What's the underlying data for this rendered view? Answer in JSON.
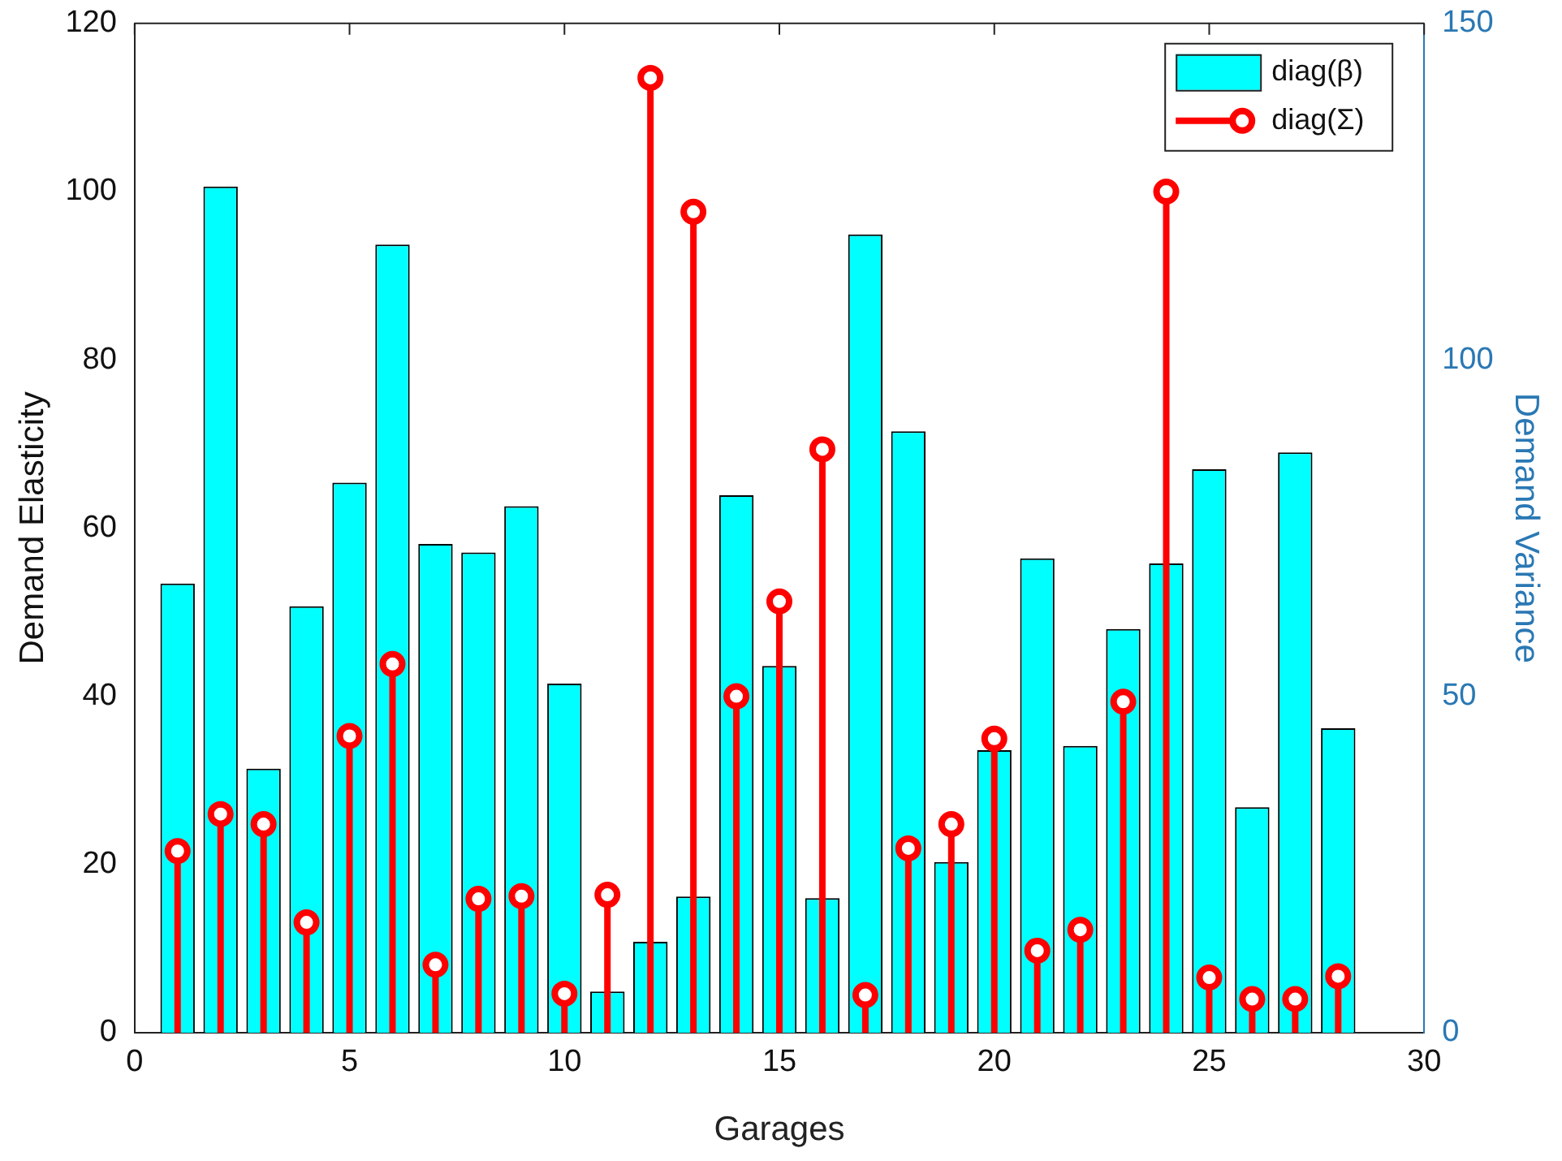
{
  "chart_data": {
    "type": "bar",
    "xlabel": "Garages",
    "ylabel": "Demand Elasticity",
    "y2label": "Demand Variance",
    "x": [
      1,
      2,
      3,
      4,
      5,
      6,
      7,
      8,
      9,
      10,
      11,
      12,
      13,
      14,
      15,
      16,
      17,
      18,
      19,
      20,
      21,
      22,
      23,
      24,
      25,
      26,
      27,
      28
    ],
    "series": [
      {
        "name": "diag(β)",
        "color": "#00ffff",
        "values": [
          53.4,
          100.6,
          31.4,
          50.7,
          65.4,
          93.7,
          58.1,
          57.1,
          62.6,
          41.5,
          4.9,
          10.8,
          16.2,
          63.9,
          43.6,
          16.0,
          94.9,
          71.5,
          20.3,
          33.6,
          56.4,
          34.1,
          48.0,
          55.8,
          67.0,
          26.8,
          69.0,
          36.2
        ]
      },
      {
        "name": "diag(Σ)",
        "type": "lollipop",
        "axis": "y2",
        "color": "#ff0000",
        "marker": "circle",
        "values": [
          27.0,
          32.5,
          31.0,
          16.4,
          44.1,
          54.8,
          10.1,
          19.9,
          20.3,
          5.8,
          20.5,
          141.9,
          122.0,
          50.0,
          64.1,
          86.7,
          5.6,
          27.4,
          31.0,
          43.7,
          12.2,
          15.3,
          49.2,
          125.0,
          8.2,
          5.0,
          5.0,
          8.4
        ]
      }
    ],
    "xlim": [
      0,
      30
    ],
    "xticks": [
      0,
      5,
      10,
      15,
      20,
      25,
      30
    ],
    "ylim": [
      0,
      120
    ],
    "yticks": [
      0,
      20,
      40,
      60,
      80,
      100,
      120
    ],
    "y2lim": [
      0,
      150
    ],
    "y2ticks": [
      0,
      50,
      100,
      150
    ],
    "grid": false,
    "legend": "top right"
  }
}
